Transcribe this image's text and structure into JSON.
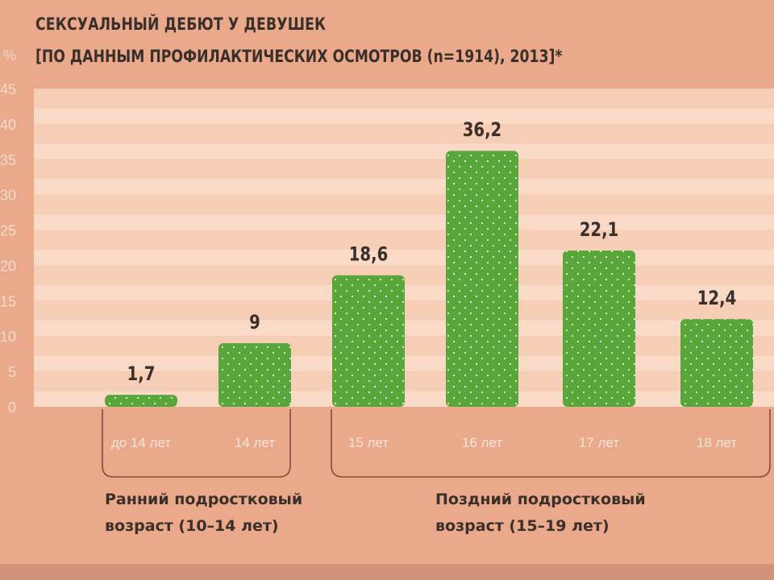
{
  "header": {
    "title": "СЕКСУАЛЬНЫЙ ДЕБЮТ У ДЕВУШЕК",
    "subtitle": "[ПО ДАННЫМ ПРОФИЛАКТИЧЕСКИХ ОСМОТРОВ (n=1914), 2013]*"
  },
  "groups": [
    {
      "line1": "Ранний подростковый",
      "line2": "возраст (10–14 лет)"
    },
    {
      "line1": "Поздний подростковый",
      "line2": "возраст (15–19 лет)"
    }
  ],
  "colors": {
    "bar": "#59a63a",
    "background": "#e9a98a",
    "plot_band": "#f6cdb5",
    "tick_label": "#f3dccc",
    "text": "#3a2f2a",
    "bracket": "#8a4a3a"
  },
  "chart_data": {
    "type": "bar",
    "title": "СЕКСУАЛЬНЫЙ ДЕБЮТ У ДЕВУШЕК",
    "subtitle": "[ПО ДАННЫМ ПРОФИЛАКТИЧЕСКИХ ОСМОТРОВ (n=1914), 2013]*",
    "ylabel": "%",
    "categories": [
      "до 14 лет",
      "14 лет",
      "15 лет",
      "16 лет",
      "17 лет",
      "18 лет"
    ],
    "values": [
      1.7,
      9,
      18.6,
      36.2,
      22.1,
      12.4
    ],
    "value_labels": [
      "1,7",
      "9",
      "18,6",
      "36,2",
      "22,1",
      "12,4"
    ],
    "ylim": [
      0,
      45
    ],
    "yticks": [
      0,
      5,
      10,
      15,
      20,
      25,
      30,
      35,
      40,
      45
    ],
    "grid": true,
    "legend": "none"
  }
}
